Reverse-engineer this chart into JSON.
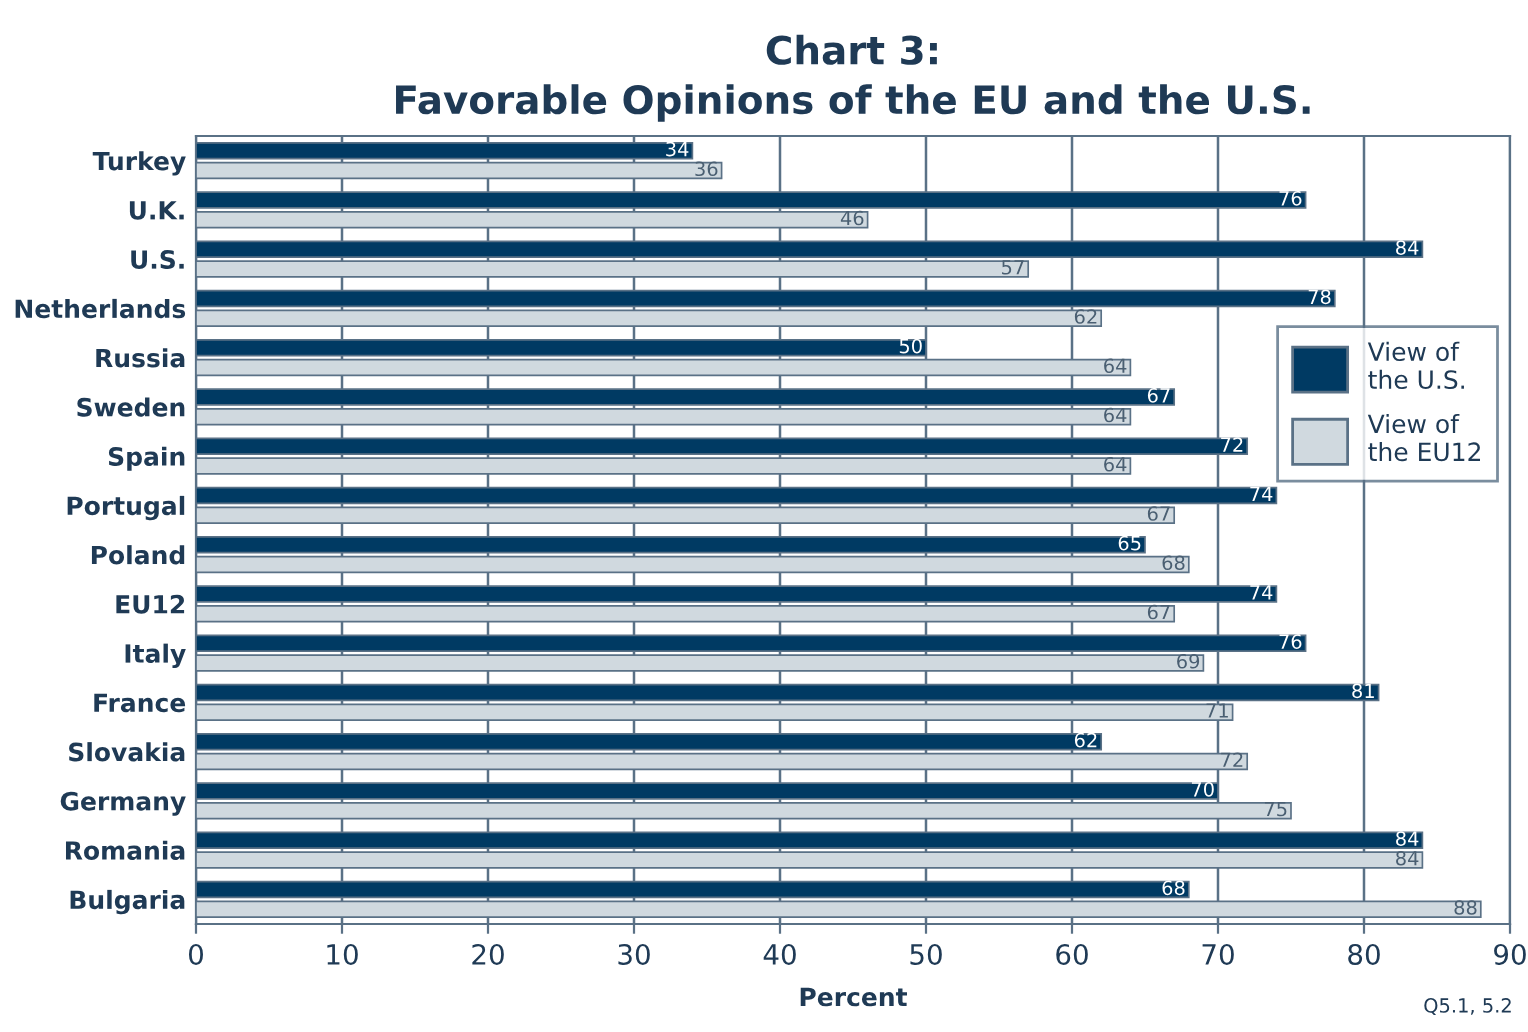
{
  "chart_data": {
    "type": "bar",
    "orientation": "horizontal",
    "title": "Chart 3:\nFavorable Opinions of the EU and the U.S.",
    "xlabel": "Percent",
    "categories": [
      "Turkey",
      "U.K.",
      "U.S.",
      "Netherlands",
      "Russia",
      "Sweden",
      "Spain",
      "Portugal",
      "Poland",
      "EU12",
      "Italy",
      "France",
      "Slovakia",
      "Germany",
      "Romania",
      "Bulgaria"
    ],
    "series": [
      {
        "name": "View of\nthe U.S.",
        "color": "#003a63",
        "values": [
          34,
          76,
          84,
          78,
          50,
          67,
          72,
          74,
          65,
          74,
          76,
          81,
          62,
          70,
          84,
          68
        ]
      },
      {
        "name": "View of\nthe EU12",
        "color": "#d0d9df",
        "values": [
          36,
          46,
          57,
          62,
          64,
          64,
          64,
          67,
          68,
          67,
          69,
          71,
          72,
          75,
          84,
          88
        ]
      }
    ],
    "xlim": [
      0,
      90
    ],
    "xticks": [
      0,
      10,
      20,
      30,
      40,
      50,
      60,
      70,
      80,
      90
    ],
    "grid": "x",
    "legend": "right",
    "data_labels": true,
    "annotations": [
      "Q5.1, 5.2"
    ]
  }
}
